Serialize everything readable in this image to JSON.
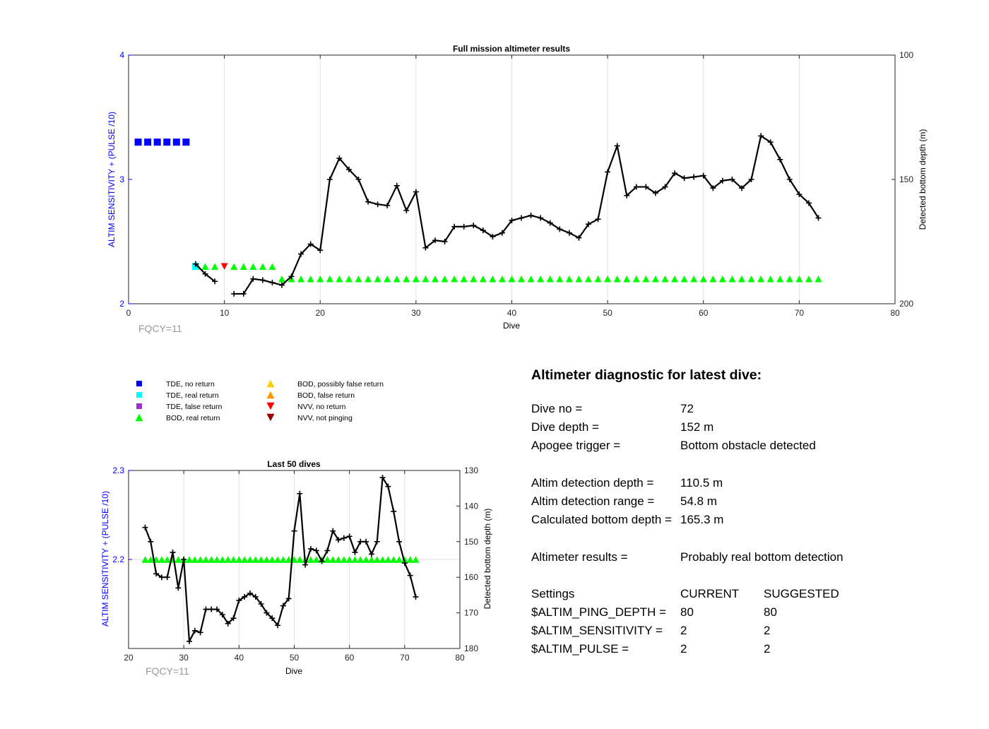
{
  "colors": {
    "left_axis": "#0000ff",
    "right_axis": "#000000",
    "tde_no_return": "#0000ff",
    "tde_real_return": "#00ffff",
    "tde_false_return": "#9933cc",
    "bod_real_return": "#00ff00",
    "bod_possibly_false": "#ffcc00",
    "bod_false_return": "#ff9900",
    "nvv_no_return": "#ff0000",
    "nvv_not_pinging": "#990000",
    "bottom_line": "#000000",
    "annotation": "#999999"
  },
  "legend": {
    "items": [
      {
        "label": "TDE, no return",
        "marker": "square",
        "color": "#0000ff"
      },
      {
        "label": "TDE, real return",
        "marker": "square",
        "color": "#00ffff"
      },
      {
        "label": "TDE, false return",
        "marker": "square",
        "color": "#9933cc"
      },
      {
        "label": "BOD, real return",
        "marker": "triangle-up",
        "color": "#00ff00"
      },
      {
        "label": "BOD, possibly false return",
        "marker": "triangle-up",
        "color": "#ffcc00"
      },
      {
        "label": "BOD, false return",
        "marker": "triangle-up",
        "color": "#ff9900"
      },
      {
        "label": "NVV, no return",
        "marker": "triangle-down",
        "color": "#ff0000"
      },
      {
        "label": "NVV, not pinging",
        "marker": "triangle-down",
        "color": "#990000"
      }
    ]
  },
  "chart_data": [
    {
      "type": "scatter",
      "title": "Full mission altimeter results",
      "xlabel": "Dive",
      "ylabel": "ALTIM SENSITIVITY + (PULSE /10)",
      "y2label": "Detected bottom depth (m)",
      "annotation": "FQCY=11",
      "xlim": [
        0,
        80
      ],
      "ylim": [
        2,
        4
      ],
      "y2lim": [
        100,
        200
      ],
      "y2_reversed": true,
      "xticks": [
        0,
        10,
        20,
        30,
        40,
        50,
        60,
        70,
        80
      ],
      "yticks": [
        2,
        3,
        4
      ],
      "y2ticks": [
        100,
        150,
        200
      ],
      "grid": "x",
      "series": [
        {
          "marker": "square",
          "color": "#0000ff",
          "x": [
            1,
            2,
            3,
            4,
            5,
            6
          ],
          "y": [
            3.3,
            3.3,
            3.3,
            3.3,
            3.3,
            3.3
          ]
        },
        {
          "marker": "square",
          "color": "#00ffff",
          "x": [
            7
          ],
          "y": [
            2.3
          ]
        },
        {
          "marker": "triangle-down",
          "color": "#ff0000",
          "x": [
            10
          ],
          "y": [
            2.3
          ]
        },
        {
          "marker": "triangle-up",
          "color": "#00ff00",
          "x": [
            8,
            9,
            11,
            12,
            13,
            14,
            15,
            16,
            17,
            18,
            19,
            20,
            21,
            22,
            23,
            24,
            25,
            26,
            27,
            28,
            29,
            30,
            31,
            32,
            33,
            34,
            35,
            36,
            37,
            38,
            39,
            40,
            41,
            42,
            43,
            44,
            45,
            46,
            47,
            48,
            49,
            50,
            51,
            52,
            53,
            54,
            55,
            56,
            57,
            58,
            59,
            60,
            61,
            62,
            63,
            64,
            65,
            66,
            67,
            68,
            69,
            70,
            71,
            72
          ],
          "y": [
            2.3,
            2.3,
            2.3,
            2.3,
            2.3,
            2.3,
            2.3,
            2.2,
            2.2,
            2.2,
            2.2,
            2.2,
            2.2,
            2.2,
            2.2,
            2.2,
            2.2,
            2.2,
            2.2,
            2.2,
            2.2,
            2.2,
            2.2,
            2.2,
            2.2,
            2.2,
            2.2,
            2.2,
            2.2,
            2.2,
            2.2,
            2.2,
            2.2,
            2.2,
            2.2,
            2.2,
            2.2,
            2.2,
            2.2,
            2.2,
            2.2,
            2.2,
            2.2,
            2.2,
            2.2,
            2.2,
            2.2,
            2.2,
            2.2,
            2.2,
            2.2,
            2.2,
            2.2,
            2.2,
            2.2,
            2.2,
            2.2,
            2.2,
            2.2,
            2.2,
            2.2,
            2.2,
            2.2,
            2.2
          ]
        },
        {
          "marker": "plus-line",
          "color": "#000000",
          "axis": "right",
          "segments": [
            {
              "x": [
                7,
                8,
                9
              ],
              "y": [
                184,
                188,
                191
              ]
            },
            {
              "x": [
                11,
                12,
                13,
                14,
                15,
                16,
                17,
                18,
                19,
                20,
                21,
                22,
                23,
                24,
                25,
                26,
                27,
                28,
                29,
                30,
                31,
                32,
                33,
                34,
                35,
                36,
                37,
                38,
                39,
                40,
                41,
                42,
                43,
                44,
                45,
                46,
                47,
                48,
                49,
                50,
                51,
                52,
                53,
                54,
                55,
                56,
                57,
                58,
                59,
                60,
                61,
                62,
                63,
                64,
                65,
                66,
                67,
                68,
                69,
                70,
                71,
                72
              ],
              "y": [
                196,
                196,
                190,
                190.5,
                191.5,
                192.5,
                189,
                180,
                176,
                178.5,
                150,
                141.5,
                146,
                150,
                159,
                160,
                160.5,
                152.5,
                162.5,
                155,
                177.5,
                174.5,
                175,
                169,
                169,
                168.5,
                170.5,
                173,
                171.5,
                166.5,
                165.5,
                164.5,
                165.5,
                167.5,
                170,
                171.5,
                173.5,
                168,
                166,
                147,
                136.5,
                156.5,
                153,
                153,
                155.5,
                153,
                147.5,
                149.5,
                149,
                148.5,
                153.5,
                150.5,
                150,
                153.5,
                150,
                132.5,
                135,
                142,
                150,
                156,
                159.5,
                165.5
              ]
            }
          ]
        }
      ]
    },
    {
      "type": "scatter",
      "title": "Last 50 dives",
      "xlabel": "Dive",
      "ylabel": "ALTIM SENSITIVITY + (PULSE /10)",
      "y2label": "Detected bottom depth (m)",
      "annotation": "FQCY=11",
      "xlim": [
        20,
        80
      ],
      "ylim": [
        2.1,
        2.3
      ],
      "y2lim": [
        130,
        180
      ],
      "y2_reversed": true,
      "xticks": [
        20,
        30,
        40,
        50,
        60,
        70,
        80
      ],
      "yticks": [
        2.2,
        2.3
      ],
      "y2ticks": [
        130,
        140,
        150,
        160,
        170,
        180
      ],
      "grid": "x",
      "series": [
        {
          "marker": "triangle-up",
          "color": "#00ff00",
          "x": [
            23,
            24,
            25,
            26,
            27,
            28,
            29,
            30,
            31,
            32,
            33,
            34,
            35,
            36,
            37,
            38,
            39,
            40,
            41,
            42,
            43,
            44,
            45,
            46,
            47,
            48,
            49,
            50,
            51,
            52,
            53,
            54,
            55,
            56,
            57,
            58,
            59,
            60,
            61,
            62,
            63,
            64,
            65,
            66,
            67,
            68,
            69,
            70,
            71,
            72
          ],
          "y": [
            2.2,
            2.2,
            2.2,
            2.2,
            2.2,
            2.2,
            2.2,
            2.2,
            2.2,
            2.2,
            2.2,
            2.2,
            2.2,
            2.2,
            2.2,
            2.2,
            2.2,
            2.2,
            2.2,
            2.2,
            2.2,
            2.2,
            2.2,
            2.2,
            2.2,
            2.2,
            2.2,
            2.2,
            2.2,
            2.2,
            2.2,
            2.2,
            2.2,
            2.2,
            2.2,
            2.2,
            2.2,
            2.2,
            2.2,
            2.2,
            2.2,
            2.2,
            2.2,
            2.2,
            2.2,
            2.2,
            2.2,
            2.2,
            2.2,
            2.2
          ]
        },
        {
          "marker": "plus-line",
          "color": "#000000",
          "axis": "right",
          "segments": [
            {
              "x": [
                23,
                24,
                25,
                26,
                27,
                28,
                29,
                30,
                31,
                32,
                33,
                34,
                35,
                36,
                37,
                38,
                39,
                40,
                41,
                42,
                43,
                44,
                45,
                46,
                47,
                48,
                49,
                50,
                51,
                52,
                53,
                54,
                55,
                56,
                57,
                58,
                59,
                60,
                61,
                62,
                63,
                64,
                65,
                66,
                67,
                68,
                69,
                70,
                71,
                72
              ],
              "y": [
                146,
                150,
                159,
                160,
                160,
                153,
                163,
                155,
                178,
                175,
                175.5,
                169,
                169,
                169,
                170.5,
                173,
                171.5,
                166.5,
                165.5,
                164.5,
                165.5,
                167.5,
                170,
                171.5,
                173.5,
                168,
                166,
                147,
                136.5,
                156.5,
                152,
                152.5,
                155.5,
                152.5,
                147,
                149.5,
                149,
                148.5,
                153,
                150,
                150,
                153.5,
                150,
                132,
                134.5,
                141.5,
                150,
                156,
                159.5,
                165.5
              ]
            }
          ]
        }
      ]
    }
  ],
  "diagnostic": {
    "title": "Altimeter diagnostic for latest dive:",
    "dive_no": {
      "label": "Dive no =",
      "value": "72"
    },
    "dive_depth": {
      "label": "Dive depth =",
      "value": "152 m"
    },
    "apogee_trigger": {
      "label": "Apogee trigger =",
      "value": "Bottom obstacle detected"
    },
    "altim_detection_depth": {
      "label": "Altim detection depth =",
      "value": "110.5 m"
    },
    "altim_detection_range": {
      "label": "Altim detection range =",
      "value": "54.8 m"
    },
    "calculated_bottom_depth": {
      "label": "Calculated bottom depth =",
      "value": "165.3 m"
    },
    "altimeter_results": {
      "label": "Altimeter results =",
      "value": "Probably real bottom detection"
    },
    "settings_header": {
      "label": "Settings",
      "current": "CURRENT",
      "suggested": "SUGGESTED"
    },
    "settings": [
      {
        "label": "$ALTIM_PING_DEPTH =",
        "current": "80",
        "suggested": "80"
      },
      {
        "label": "$ALTIM_SENSITIVITY =",
        "current": "2",
        "suggested": "2"
      },
      {
        "label": "$ALTIM_PULSE =",
        "current": "2",
        "suggested": "2"
      }
    ]
  }
}
